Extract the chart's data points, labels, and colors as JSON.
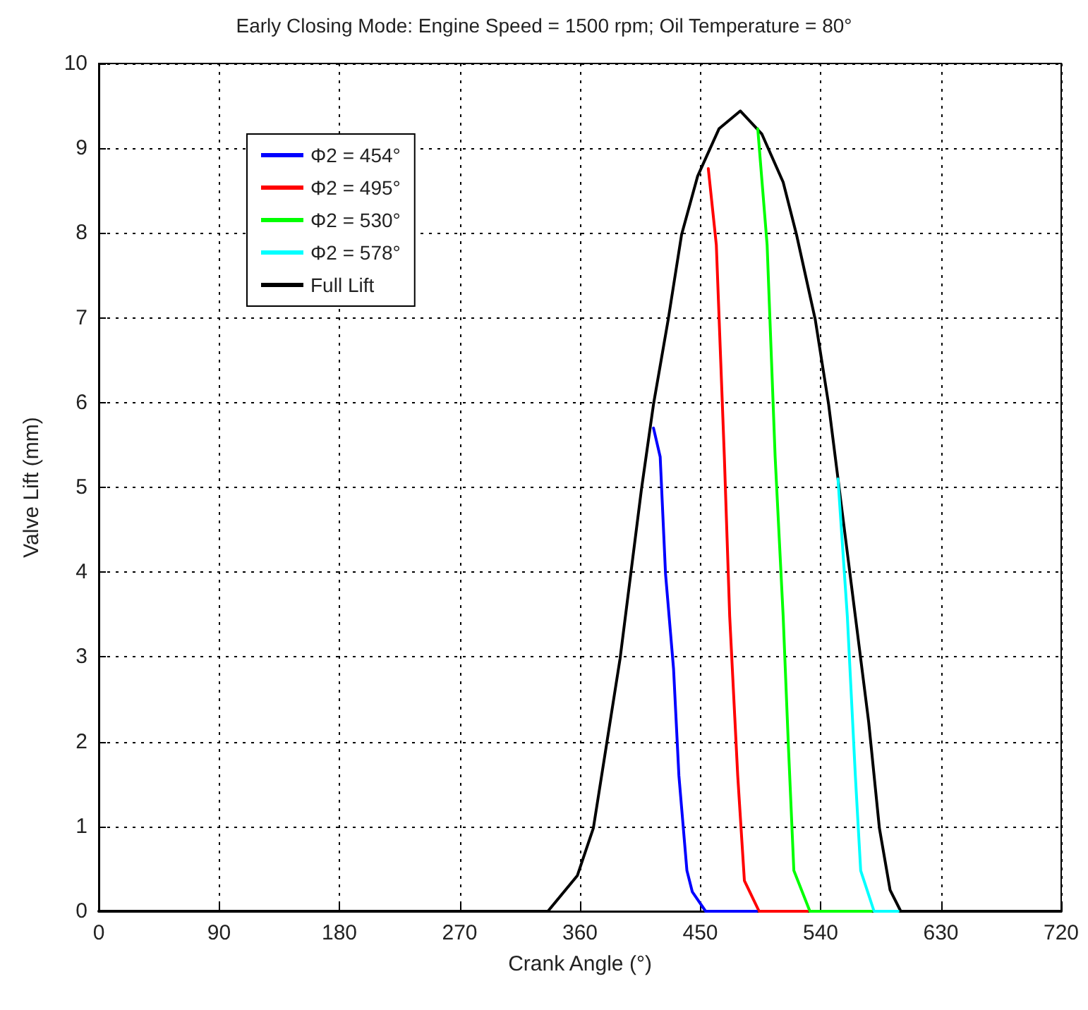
{
  "chart_data": {
    "type": "line",
    "title": "Early Closing Mode: Engine Speed = 1500 rpm; Oil Temperature = 80°",
    "xlabel": "Crank Angle (°)",
    "ylabel": "Valve Lift (mm)",
    "xlim": [
      0,
      720
    ],
    "xticks": [
      0,
      90,
      180,
      270,
      360,
      450,
      540,
      630,
      720
    ],
    "ylim": [
      0,
      10
    ],
    "yticks": [
      0,
      1,
      2,
      3,
      4,
      5,
      6,
      7,
      8,
      9,
      10
    ],
    "grid": true,
    "legend": "top left",
    "marker": "none",
    "line_style": "solid",
    "series": [
      {
        "name": "Φ2 = 454°",
        "color": "#0000ff",
        "x": [
          415,
          420,
          424,
          430,
          434,
          440,
          444,
          454,
          492
        ],
        "values": [
          5.7,
          5.36,
          3.98,
          2.86,
          1.6,
          0.48,
          0.23,
          0,
          0
        ]
      },
      {
        "name": "Φ2 = 495°",
        "color": "#ff0000",
        "x": [
          456,
          462,
          468,
          472,
          478,
          483,
          494,
          530
        ],
        "values": [
          8.76,
          7.86,
          5.36,
          3.48,
          1.6,
          0.36,
          0,
          0
        ]
      },
      {
        "name": "Φ2 = 530°",
        "color": "#00ff00",
        "x": [
          493,
          500,
          506,
          512,
          516,
          520,
          532,
          578
        ],
        "values": [
          9.23,
          7.86,
          5.36,
          3.48,
          1.92,
          0.48,
          0,
          0
        ]
      },
      {
        "name": "Φ2 = 578°",
        "color": "#00ffff",
        "x": [
          553,
          560,
          566,
          570,
          580,
          598
        ],
        "values": [
          5.1,
          3.48,
          1.6,
          0.48,
          0,
          0
        ]
      },
      {
        "name": "Full Lift",
        "color": "#000000",
        "x": [
          0,
          336,
          358,
          370,
          380,
          390,
          398,
          406,
          415,
          426,
          436,
          448,
          464,
          480,
          496,
          512,
          522,
          536,
          546,
          556,
          566,
          576,
          584,
          592,
          600,
          720
        ],
        "values": [
          0,
          0,
          0.42,
          0.98,
          1.98,
          2.98,
          3.98,
          4.98,
          5.98,
          6.98,
          7.98,
          8.67,
          9.23,
          9.44,
          9.17,
          8.6,
          7.98,
          6.98,
          5.98,
          4.73,
          3.48,
          2.23,
          0.98,
          0.25,
          0,
          0
        ]
      }
    ]
  }
}
